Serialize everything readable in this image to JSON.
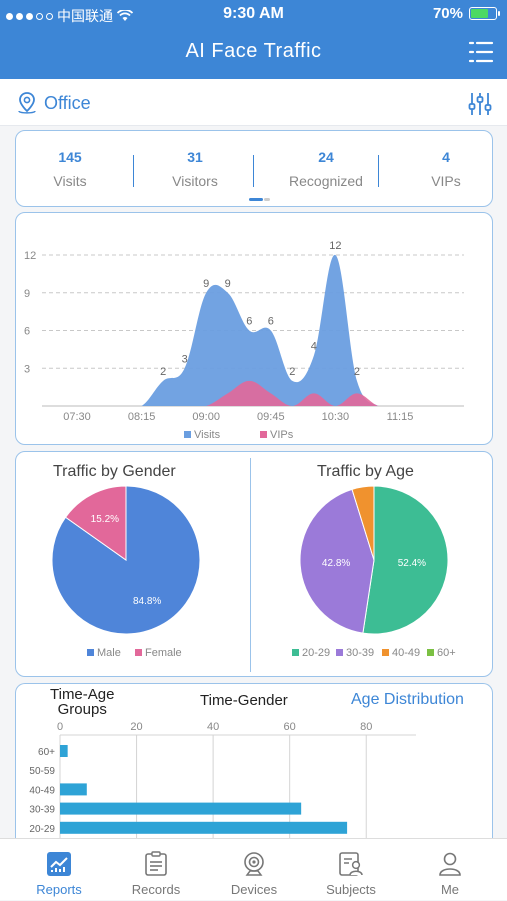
{
  "status_bar": {
    "carrier": "中国联通",
    "time": "9:30 AM",
    "battery": "70%",
    "battery_level": 0.7
  },
  "header": {
    "title": "AI Face Traffic"
  },
  "location": {
    "name": "Office"
  },
  "stats": [
    {
      "value": "145",
      "label": "Visits"
    },
    {
      "value": "31",
      "label": "Visitors"
    },
    {
      "value": "24",
      "label": "Recognized"
    },
    {
      "value": "4",
      "label": "VIPs"
    }
  ],
  "chart_data": [
    {
      "type": "area",
      "x": [
        "07:30",
        "07:45",
        "08:00",
        "08:15",
        "08:30",
        "08:45",
        "09:00",
        "09:15",
        "09:30",
        "09:45",
        "10:00",
        "10:15",
        "10:30",
        "10:45",
        "11:00",
        "11:15"
      ],
      "x_tick_labels": [
        "07:30",
        "08:15",
        "09:00",
        "09:45",
        "10:30",
        "11:15"
      ],
      "y_ticks": [
        3,
        6,
        9,
        12
      ],
      "ylim": [
        0,
        12
      ],
      "series": [
        {
          "name": "Visits",
          "color": "#6a9ee0",
          "values": [
            0,
            0,
            0,
            0,
            2,
            3,
            9,
            9,
            6,
            6,
            2,
            4,
            12,
            2,
            0,
            0
          ]
        },
        {
          "name": "VIPs",
          "color": "#e2689a",
          "values": [
            0,
            0,
            0,
            0,
            0,
            0,
            0,
            1,
            2,
            1,
            0,
            1,
            0,
            1,
            0,
            0
          ]
        }
      ],
      "data_labels": [
        {
          "index": 4,
          "text": "2"
        },
        {
          "index": 5,
          "text": "3"
        },
        {
          "index": 6,
          "text": "9"
        },
        {
          "index": 7,
          "text": "9"
        },
        {
          "index": 8,
          "text": "6"
        },
        {
          "index": 9,
          "text": "6"
        },
        {
          "index": 10,
          "text": "2"
        },
        {
          "index": 11,
          "text": "4"
        },
        {
          "index": 12,
          "text": "12"
        },
        {
          "index": 13,
          "text": "2"
        }
      ],
      "legend": [
        "Visits",
        "VIPs"
      ],
      "grid": true
    },
    {
      "type": "pie",
      "title": "Traffic by Gender",
      "slices": [
        {
          "name": "Male",
          "value": 84.8,
          "label": "84.8%",
          "color": "#4f85d9"
        },
        {
          "name": "Female",
          "value": 15.2,
          "label": "15.2%",
          "color": "#e2689a"
        }
      ],
      "legend": [
        "Male",
        "Female"
      ]
    },
    {
      "type": "pie",
      "title": "Traffic by Age",
      "slices": [
        {
          "name": "20-29",
          "value": 52.4,
          "label": "52.4%",
          "color": "#3dbd94"
        },
        {
          "name": "30-39",
          "value": 42.8,
          "label": "42.8%",
          "color": "#9b7ad9"
        },
        {
          "name": "40-49",
          "value": 4.8,
          "label": "",
          "color": "#f0922e"
        },
        {
          "name": "60+",
          "value": 0,
          "label": "",
          "color": "#7bc043"
        }
      ],
      "legend": [
        "20-29",
        "30-39",
        "40-49",
        "60+"
      ]
    },
    {
      "type": "bar",
      "orientation": "horizontal",
      "categories": [
        "60+",
        "50-59",
        "40-49",
        "30-39",
        "20-29"
      ],
      "values": [
        2,
        0,
        7,
        63,
        75
      ],
      "x_ticks": [
        0,
        20,
        40,
        60,
        80
      ],
      "xlim": [
        0,
        93
      ],
      "color": "#2ea3d6",
      "grid": true
    }
  ],
  "bar_tabs": {
    "time_age": "Time-Age\nGroups",
    "time_gender": "Time-Gender",
    "age_distribution": "Age Distribution"
  },
  "nav": [
    {
      "label": "Reports",
      "icon": "reports-icon",
      "active": true
    },
    {
      "label": "Records",
      "icon": "records-icon",
      "active": false
    },
    {
      "label": "Devices",
      "icon": "devices-icon",
      "active": false
    },
    {
      "label": "Subjects",
      "icon": "subjects-icon",
      "active": false
    },
    {
      "label": "Me",
      "icon": "me-icon",
      "active": false
    }
  ]
}
